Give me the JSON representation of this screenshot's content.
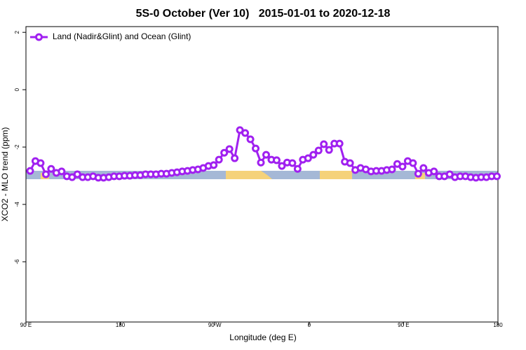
{
  "chart_data": {
    "type": "line",
    "title": "5S-0 October (Ver 10)   2015-01-01 to 2020-12-18",
    "x_label": "Longitude (deg E)",
    "y_label": "XCO2 - MLO trend (ppm)",
    "xlim": [
      90,
      540
    ],
    "ylim": [
      -8.1,
      2.2
    ],
    "xticks": [
      {
        "value": 90,
        "label": "90 E"
      },
      180,
      {
        "value": 270,
        "label": "90 W"
      },
      {
        "value": 360,
        "label": "0"
      },
      {
        "value": 450,
        "label": "90 E"
      },
      {
        "value": 540,
        "label": "180"
      }
    ],
    "yticks": [
      2,
      0,
      -2,
      -4,
      -6
    ],
    "legend_position": "top-left",
    "x": [
      94,
      99,
      104,
      109,
      114,
      119,
      124,
      129,
      134,
      139,
      144,
      149,
      154,
      159,
      164,
      169,
      174,
      179,
      184,
      189,
      194,
      199,
      204,
      209,
      214,
      219,
      224,
      229,
      234,
      239,
      244,
      249,
      254,
      259,
      264,
      269,
      274,
      279,
      284,
      289,
      294,
      299,
      304,
      309,
      314,
      319,
      324,
      329,
      334,
      339,
      344,
      349,
      354,
      359,
      364,
      369,
      374,
      379,
      384,
      389,
      394,
      399,
      404,
      409,
      414,
      419,
      424,
      429,
      434,
      439,
      444,
      449,
      454,
      459,
      464,
      469,
      474,
      479,
      484,
      489,
      494,
      499,
      504,
      509,
      514,
      519,
      524,
      529,
      534,
      539
    ],
    "series": [
      {
        "name": "Land (Nadir&Glint) and Ocean (Glint)",
        "color": "#a020f0",
        "values": [
          -2.83,
          -2.49,
          -2.56,
          -2.95,
          -2.76,
          -2.9,
          -2.85,
          -3.02,
          -3.05,
          -2.95,
          -3.05,
          -3.05,
          -3.02,
          -3.07,
          -3.07,
          -3.05,
          -3.02,
          -3.02,
          -3.0,
          -3.0,
          -2.98,
          -2.98,
          -2.95,
          -2.95,
          -2.95,
          -2.93,
          -2.93,
          -2.9,
          -2.88,
          -2.85,
          -2.83,
          -2.8,
          -2.78,
          -2.73,
          -2.66,
          -2.63,
          -2.44,
          -2.2,
          -2.07,
          -2.39,
          -1.41,
          -1.51,
          -1.73,
          -2.05,
          -2.54,
          -2.27,
          -2.44,
          -2.46,
          -2.66,
          -2.54,
          -2.56,
          -2.76,
          -2.44,
          -2.39,
          -2.27,
          -2.12,
          -1.9,
          -2.1,
          -1.88,
          -1.88,
          -2.51,
          -2.56,
          -2.8,
          -2.73,
          -2.78,
          -2.85,
          -2.83,
          -2.83,
          -2.8,
          -2.78,
          -2.59,
          -2.68,
          -2.49,
          -2.56,
          -2.93,
          -2.73,
          -2.9,
          -2.85,
          -3.02,
          -3.02,
          -2.95,
          -3.05,
          -3.02,
          -3.02,
          -3.05,
          -3.07,
          -3.05,
          -3.05,
          -3.02,
          -3.02
        ]
      }
    ]
  }
}
